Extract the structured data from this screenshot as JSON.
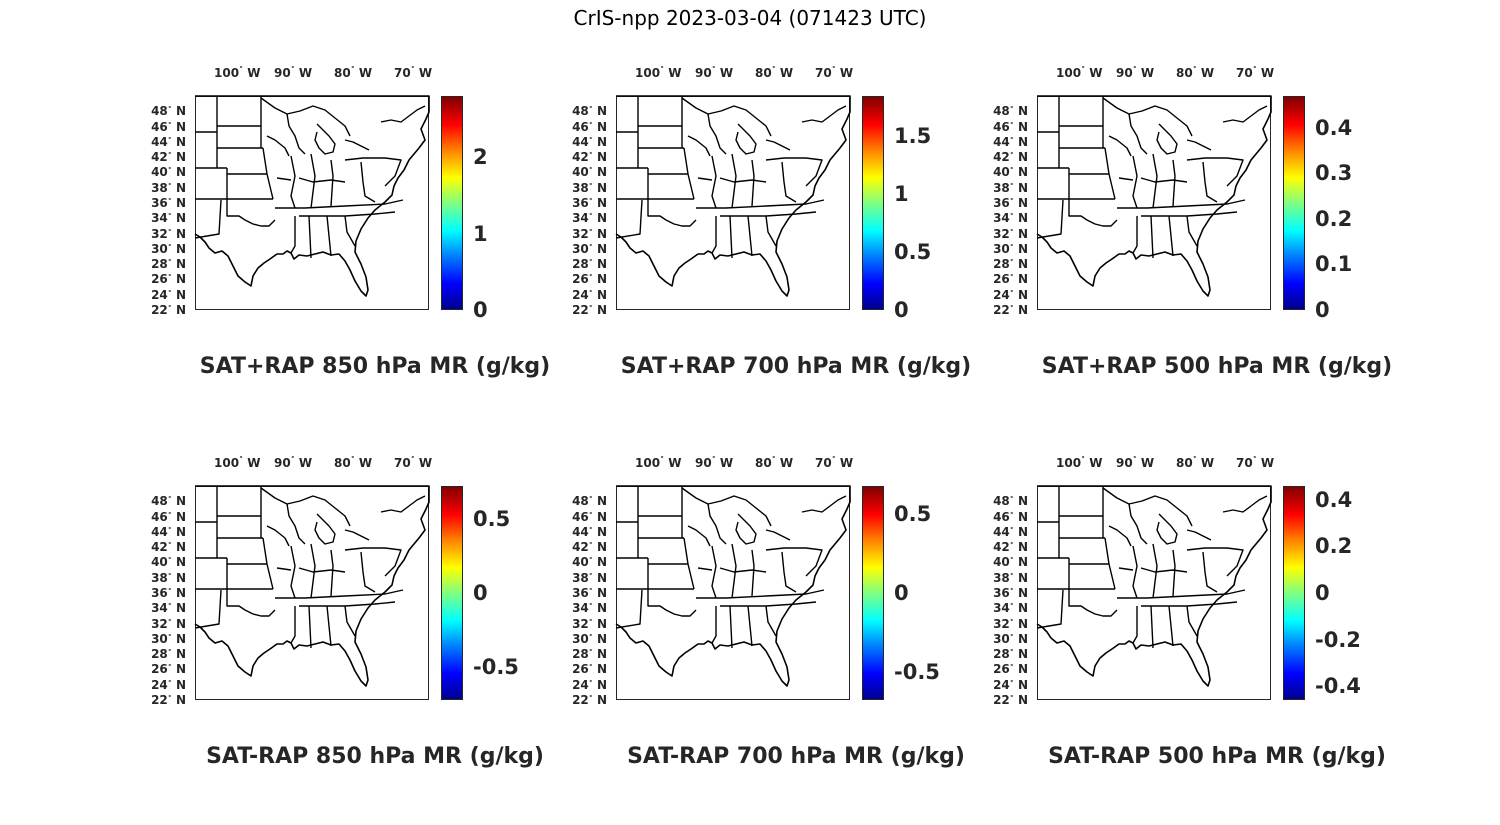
{
  "figure": {
    "title": "CrIS-npp 2023-03-04 (071423 UTC)"
  },
  "lon_ticks": [
    {
      "deg": "100",
      "hemi": "W"
    },
    {
      "deg": "90",
      "hemi": "W"
    },
    {
      "deg": "80",
      "hemi": "W"
    },
    {
      "deg": "70",
      "hemi": "W"
    }
  ],
  "lat_ticks": [
    {
      "deg": "48",
      "hemi": "N"
    },
    {
      "deg": "46",
      "hemi": "N"
    },
    {
      "deg": "44",
      "hemi": "N"
    },
    {
      "deg": "42",
      "hemi": "N"
    },
    {
      "deg": "40",
      "hemi": "N"
    },
    {
      "deg": "38",
      "hemi": "N"
    },
    {
      "deg": "36",
      "hemi": "N"
    },
    {
      "deg": "34",
      "hemi": "N"
    },
    {
      "deg": "32",
      "hemi": "N"
    },
    {
      "deg": "30",
      "hemi": "N"
    },
    {
      "deg": "28",
      "hemi": "N"
    },
    {
      "deg": "26",
      "hemi": "N"
    },
    {
      "deg": "24",
      "hemi": "N"
    },
    {
      "deg": "22",
      "hemi": "N"
    }
  ],
  "map_extent": {
    "lon_range": [
      -106,
      -67
    ],
    "lat_range": [
      22,
      50
    ]
  },
  "colormap": "jet",
  "panels": [
    {
      "title": "SAT+RAP 850 hPa MR (g/kg)",
      "cbar_range": [
        0,
        2.8
      ],
      "cbar_ticks": [
        "0",
        "1",
        "2"
      ],
      "cbar_values": [
        0,
        1,
        2
      ]
    },
    {
      "title": "SAT+RAP 700 hPa MR (g/kg)",
      "cbar_range": [
        0,
        1.85
      ],
      "cbar_ticks": [
        "0",
        "0.5",
        "1",
        "1.5"
      ],
      "cbar_values": [
        0,
        0.5,
        1,
        1.5
      ]
    },
    {
      "title": "SAT+RAP 500 hPa MR (g/kg)",
      "cbar_range": [
        0,
        0.47
      ],
      "cbar_ticks": [
        "0",
        "0.1",
        "0.2",
        "0.3",
        "0.4"
      ],
      "cbar_values": [
        0,
        0.1,
        0.2,
        0.3,
        0.4
      ]
    },
    {
      "title": "SAT-RAP 850 hPa MR (g/kg)",
      "cbar_range": [
        -0.72,
        0.72
      ],
      "cbar_ticks": [
        "-0.5",
        "0",
        "0.5"
      ],
      "cbar_values": [
        -0.5,
        0,
        0.5
      ]
    },
    {
      "title": "SAT-RAP 700 hPa MR (g/kg)",
      "cbar_range": [
        -0.68,
        0.68
      ],
      "cbar_ticks": [
        "-0.5",
        "0",
        "0.5"
      ],
      "cbar_values": [
        -0.5,
        0,
        0.5
      ]
    },
    {
      "title": "SAT-RAP 500 hPa MR (g/kg)",
      "cbar_range": [
        -0.46,
        0.46
      ],
      "cbar_ticks": [
        "-0.4",
        "-0.2",
        "0",
        "0.2",
        "0.4"
      ],
      "cbar_values": [
        -0.4,
        -0.2,
        0,
        0.2,
        0.4
      ]
    }
  ]
}
